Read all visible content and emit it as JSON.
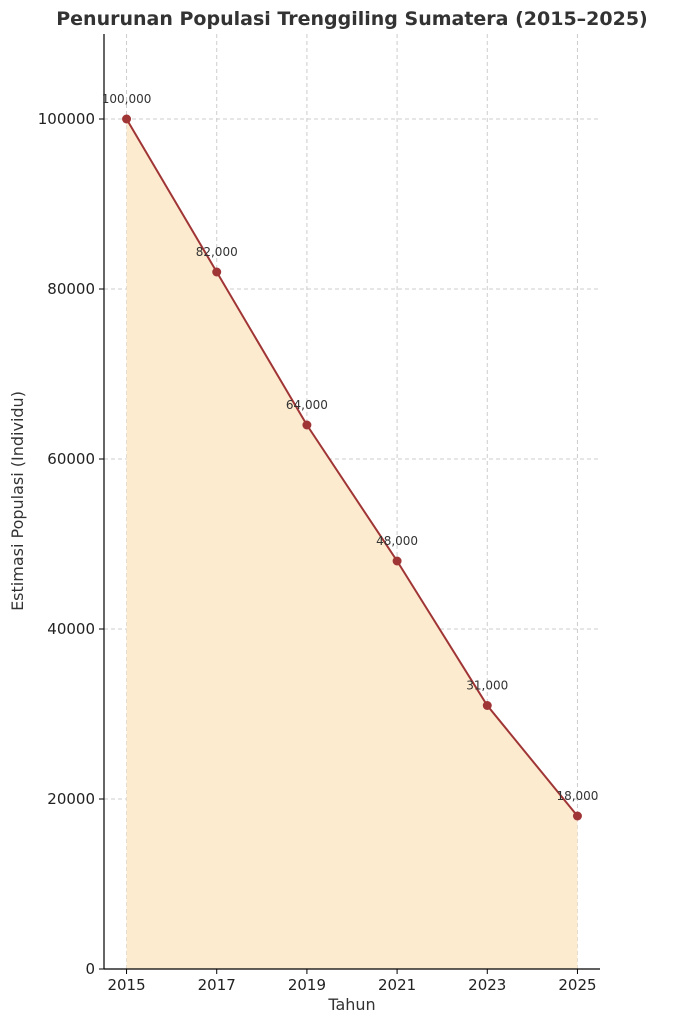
{
  "chart_data": {
    "type": "line",
    "title": "Penurunan Populasi Trenggiling Sumatera (2015–2025)",
    "xlabel": "Tahun",
    "ylabel": "Estimasi Populasi (Individu)",
    "x": [
      2015,
      2017,
      2019,
      2021,
      2023,
      2025
    ],
    "x_tick_labels": [
      "2015",
      "2017",
      "2019",
      "2021",
      "2023",
      "2025"
    ],
    "series": [
      {
        "values": [
          100000,
          82000,
          64000,
          48000,
          31000,
          18000
        ],
        "data_labels": [
          "100,000",
          "82,000",
          "64,000",
          "48,000",
          "31,000",
          "18,000"
        ],
        "color": "#a03535",
        "fill": "#fdebd0",
        "area_fill": true,
        "markers": true
      }
    ],
    "y_ticks": [
      0,
      20000,
      40000,
      60000,
      80000,
      100000
    ],
    "y_tick_labels": [
      "0",
      "20000",
      "40000",
      "60000",
      "80000",
      "100000"
    ],
    "xlim": [
      2014.5,
      2025.5
    ],
    "ylim": [
      0,
      110000
    ],
    "grid": true,
    "grid_style": "dashed"
  }
}
